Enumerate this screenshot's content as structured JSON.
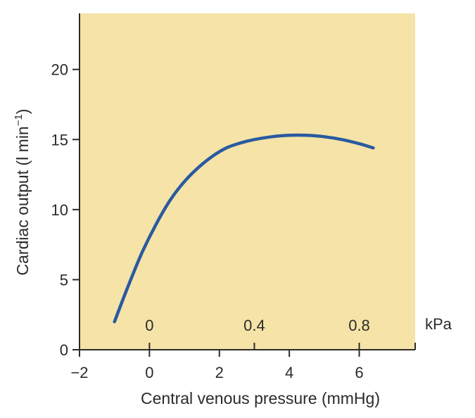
{
  "chart_data": {
    "type": "line",
    "xlabel": "Central venous pressure (mmHg)",
    "ylabel_main": "Cardiac output (l min",
    "ylabel_sup": "−1",
    "ylabel_close": ")",
    "xlim": [
      -2,
      7.6
    ],
    "ylim": [
      0,
      24
    ],
    "x_ticks": [
      -2,
      0,
      2,
      4,
      6
    ],
    "x_tick_labels": [
      "−2",
      "0",
      "2",
      "4",
      "6"
    ],
    "y_ticks": [
      0,
      5,
      10,
      15,
      20
    ],
    "y_tick_labels": [
      "0",
      "5",
      "10",
      "15",
      "20"
    ],
    "secondary_x": {
      "unit": "kPa",
      "ticks": [
        {
          "label": "0",
          "mmhg": 0
        },
        {
          "label": "0.4",
          "mmhg": 3
        },
        {
          "label": "0.8",
          "mmhg": 6
        }
      ]
    },
    "series": [
      {
        "color": "#2a5aa0",
        "points": [
          [
            -1.0,
            2.0
          ],
          [
            -0.6,
            4.6
          ],
          [
            -0.2,
            7.0
          ],
          [
            0.2,
            9.0
          ],
          [
            0.6,
            10.7
          ],
          [
            1.0,
            12.0
          ],
          [
            1.4,
            13.0
          ],
          [
            1.8,
            13.8
          ],
          [
            2.2,
            14.4
          ],
          [
            2.6,
            14.75
          ],
          [
            3.0,
            15.0
          ],
          [
            3.5,
            15.2
          ],
          [
            4.0,
            15.3
          ],
          [
            4.5,
            15.3
          ],
          [
            5.0,
            15.2
          ],
          [
            5.5,
            15.0
          ],
          [
            6.0,
            14.7
          ],
          [
            6.4,
            14.4
          ]
        ]
      }
    ],
    "plot_background": "#f5e3a8",
    "grid": false
  }
}
